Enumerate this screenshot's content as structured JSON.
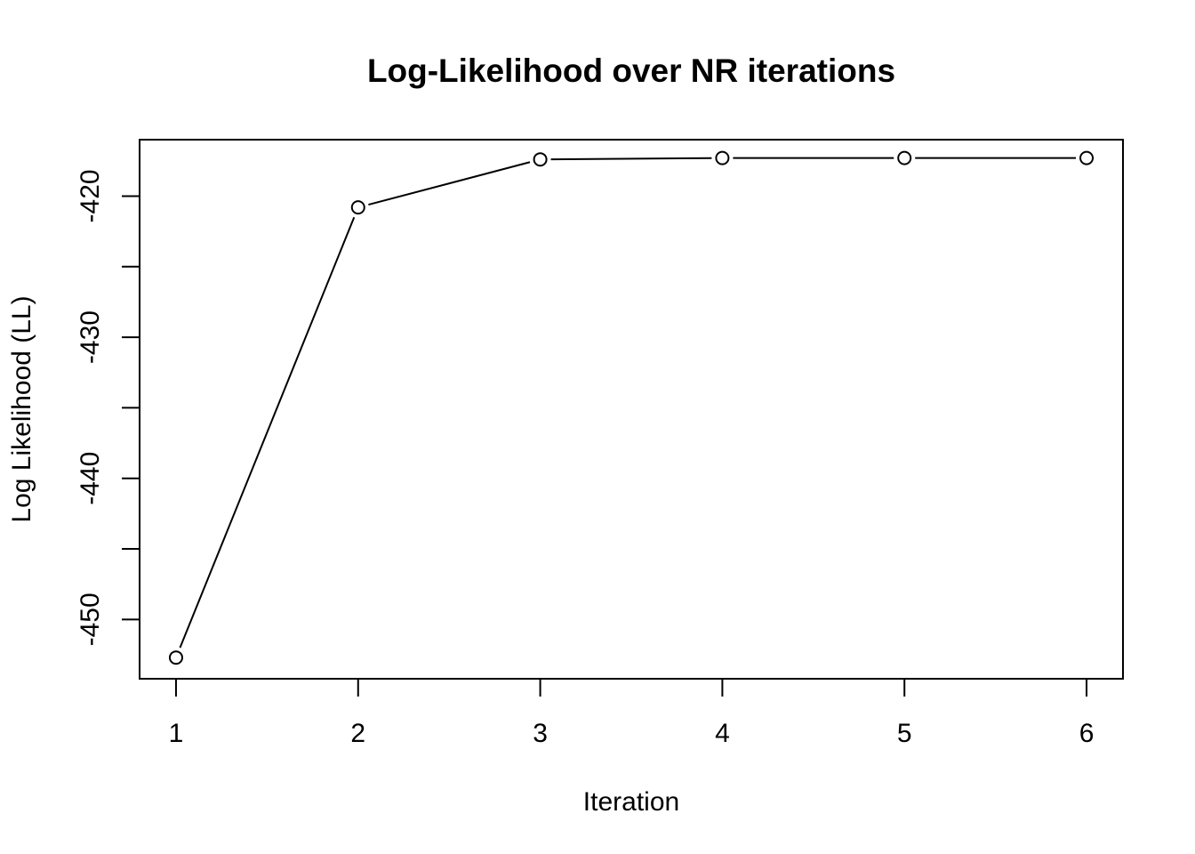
{
  "chart_data": {
    "type": "line",
    "title": "Log-Likelihood over NR iterations",
    "xlabel": "Iteration",
    "ylabel": "Log Likelihood (LL)",
    "x": [
      1,
      2,
      3,
      4,
      5,
      6
    ],
    "y": [
      -452.7,
      -420.8,
      -417.4,
      -417.3,
      -417.3,
      -417.3
    ],
    "xlim": [
      0.8,
      6.2
    ],
    "ylim": [
      -454.2,
      -416.0
    ],
    "x_ticks": [
      "1",
      "2",
      "3",
      "4",
      "5",
      "6"
    ],
    "y_ticks": [
      -450,
      -445,
      -440,
      -435,
      -430,
      -425,
      -420
    ],
    "y_tick_labels": [
      "-450",
      "",
      "-440",
      "",
      "-430",
      "",
      "-420"
    ],
    "marker": "open-circle",
    "line_color": "#000000",
    "grid": false,
    "legend": "none"
  }
}
